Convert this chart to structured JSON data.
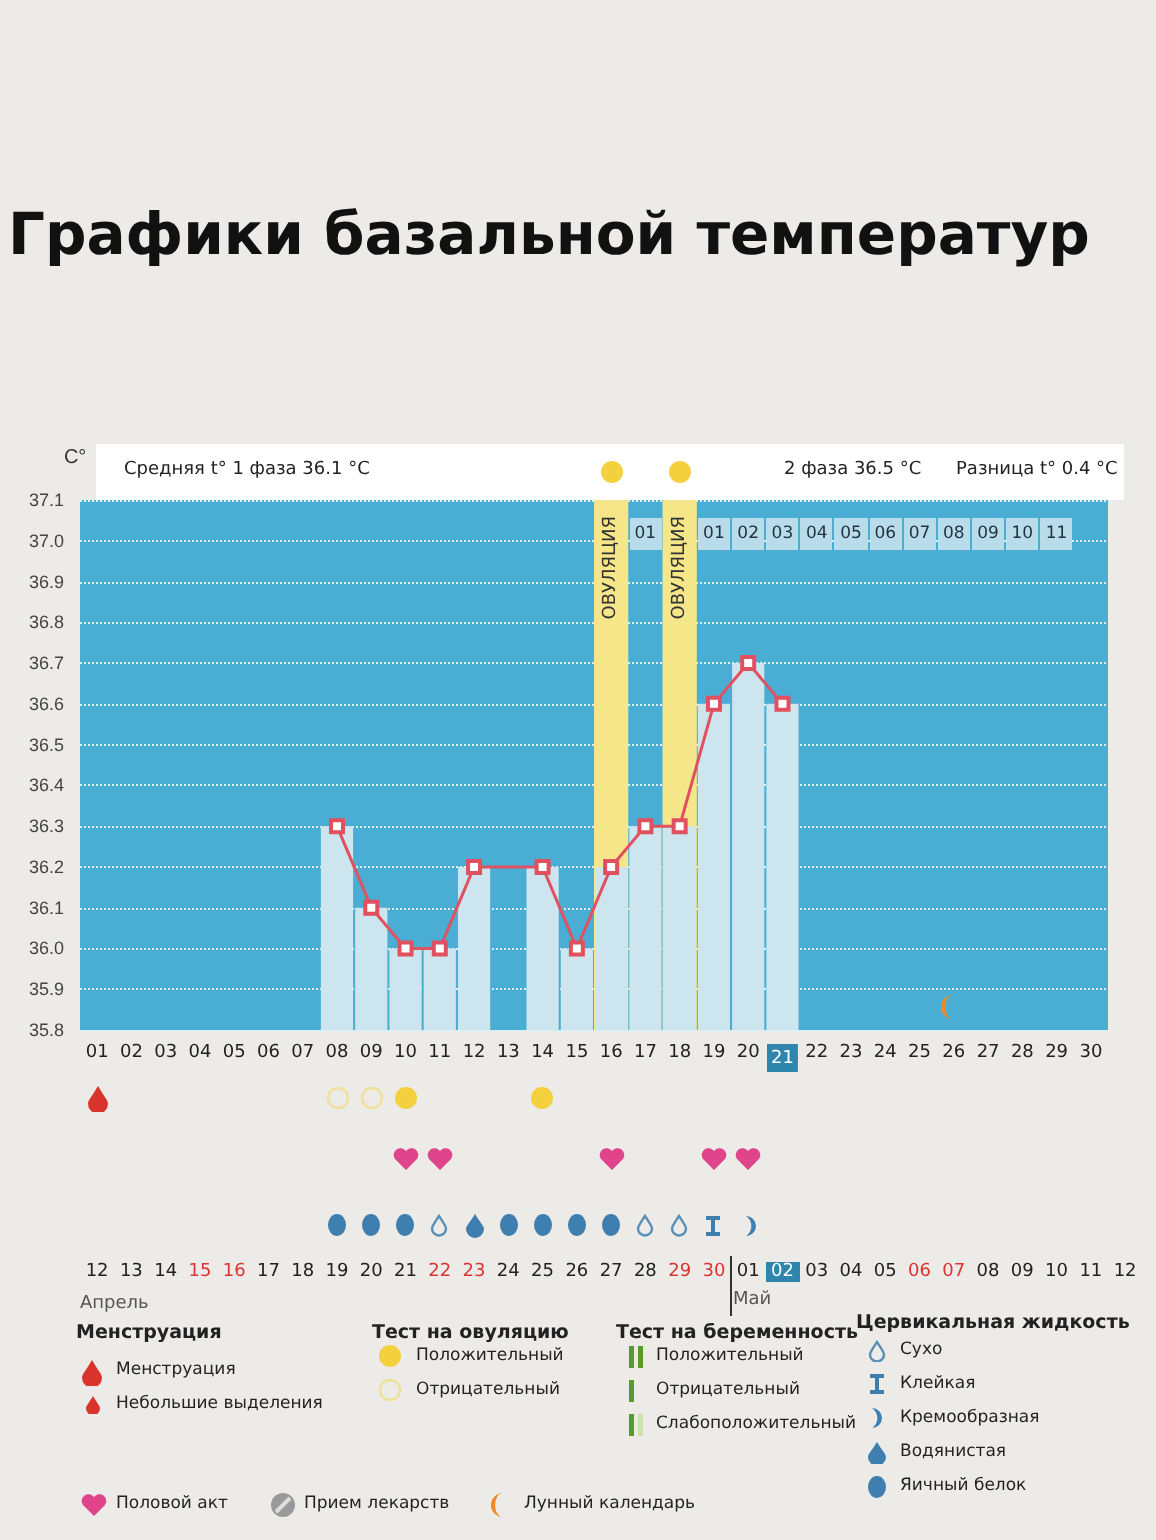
{
  "chart_data": {
    "type": "bar",
    "title": "Графики базальной температур",
    "ylabel": "C°",
    "categories": [
      "01",
      "02",
      "03",
      "04",
      "05",
      "06",
      "07",
      "08",
      "09",
      "10",
      "11",
      "12",
      "13",
      "14",
      "15",
      "16",
      "17",
      "18",
      "19",
      "20",
      "21",
      "22",
      "23",
      "24",
      "25",
      "26",
      "27",
      "28",
      "29",
      "30"
    ],
    "series": [
      {
        "color": "#cde5ee",
        "values": [
          null,
          null,
          null,
          null,
          null,
          null,
          null,
          36.3,
          36.1,
          36.0,
          36.0,
          36.2,
          null,
          36.2,
          36.0,
          36.2,
          36.3,
          36.3,
          36.6,
          36.7,
          36.6,
          null,
          null,
          null,
          null,
          null,
          null,
          null,
          null,
          null
        ]
      },
      {
        "type": "line",
        "color": "#e0505e",
        "values": [
          null,
          null,
          null,
          null,
          null,
          null,
          null,
          36.3,
          36.1,
          36.0,
          36.0,
          36.2,
          null,
          36.2,
          36.0,
          36.2,
          36.3,
          36.3,
          36.6,
          36.7,
          36.6,
          null,
          null,
          null,
          null,
          null,
          null,
          null,
          null,
          null
        ]
      }
    ],
    "ylim": [
      35.8,
      37.1
    ],
    "yticks": [
      35.8,
      35.9,
      {
        "value": 36,
        "label": "36.0"
      },
      36.1,
      36.2,
      36.3,
      36.4,
      36.5,
      36.6,
      36.7,
      36.8,
      36.9,
      {
        "value": 37,
        "label": "37.0"
      },
      37.1
    ],
    "grid": "y",
    "marker": "square",
    "bands": [
      {
        "axis": "x",
        "from": "16",
        "to": "16",
        "label": "ОВУЛЯЦИЯ",
        "color": "#f6e68a"
      },
      {
        "axis": "x",
        "from": "18",
        "to": "18",
        "label": "ОВУЛЯЦИЯ",
        "color": "#f6e68a"
      }
    ],
    "annotations": [
      "Средняя t° 1 фаза 36.1 °C",
      "2 фаза 36.5 °C",
      "Разница t° 0.4 °C",
      {
        "text": "01",
        "x": "17"
      },
      {
        "text": "01",
        "x": "19"
      },
      {
        "text": "02",
        "x": "20"
      },
      {
        "text": "03",
        "x": "21"
      },
      {
        "text": "04",
        "x": "22"
      },
      {
        "text": "05",
        "x": "23"
      },
      {
        "text": "06",
        "x": "24"
      },
      {
        "text": "07",
        "x": "25"
      },
      {
        "text": "08",
        "x": "26"
      },
      {
        "text": "09",
        "x": "27"
      },
      {
        "text": "10",
        "x": "28"
      },
      {
        "text": "11",
        "x": "29"
      },
      "12 13 14 15 16 17 18 19 20 21 22 23 24 25 26 27 28 29 30 01 02 03 04 05 06 07 08 09 10 11 12",
      "Апрель",
      "Май",
      "Менструация",
      "Менструация",
      "Небольшие выделения",
      "Тест на овуляцию",
      "Положительный",
      "Отрицательный",
      "Тест на беременность",
      "Положительный",
      "Отрицательный",
      "Слабоположительный",
      "Цервикальная жидкость",
      "Сухо",
      "Клейкая",
      "Кремообразная",
      "Водянистая",
      "Яичный белок",
      "Половой акт",
      "Прием лекарств",
      "Лунный календарь"
    ]
  }
}
